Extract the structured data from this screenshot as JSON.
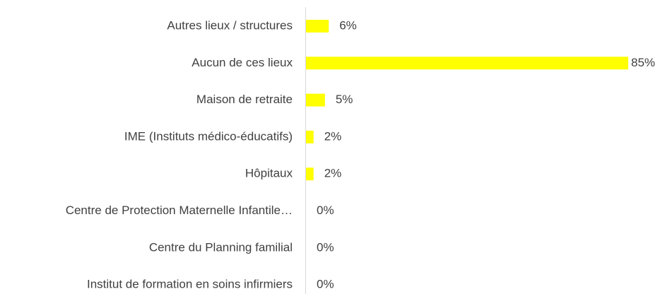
{
  "chart_data": {
    "type": "bar",
    "orientation": "horizontal",
    "categories": [
      "Autres lieux / structures",
      "Aucun de ces lieux",
      "Maison de retraite",
      "IME (Instituts médico-éducatifs)",
      "Hôpitaux",
      "Centre de Protection Maternelle Infantile…",
      "Centre du Planning familial",
      "Institut de formation en soins infirmiers"
    ],
    "values": [
      6,
      85,
      5,
      2,
      2,
      0,
      0,
      0
    ],
    "value_labels": [
      "6%",
      "85%",
      "5%",
      "2%",
      "2%",
      "0%",
      "0%",
      "0%"
    ],
    "color": "#ffff00"
  }
}
